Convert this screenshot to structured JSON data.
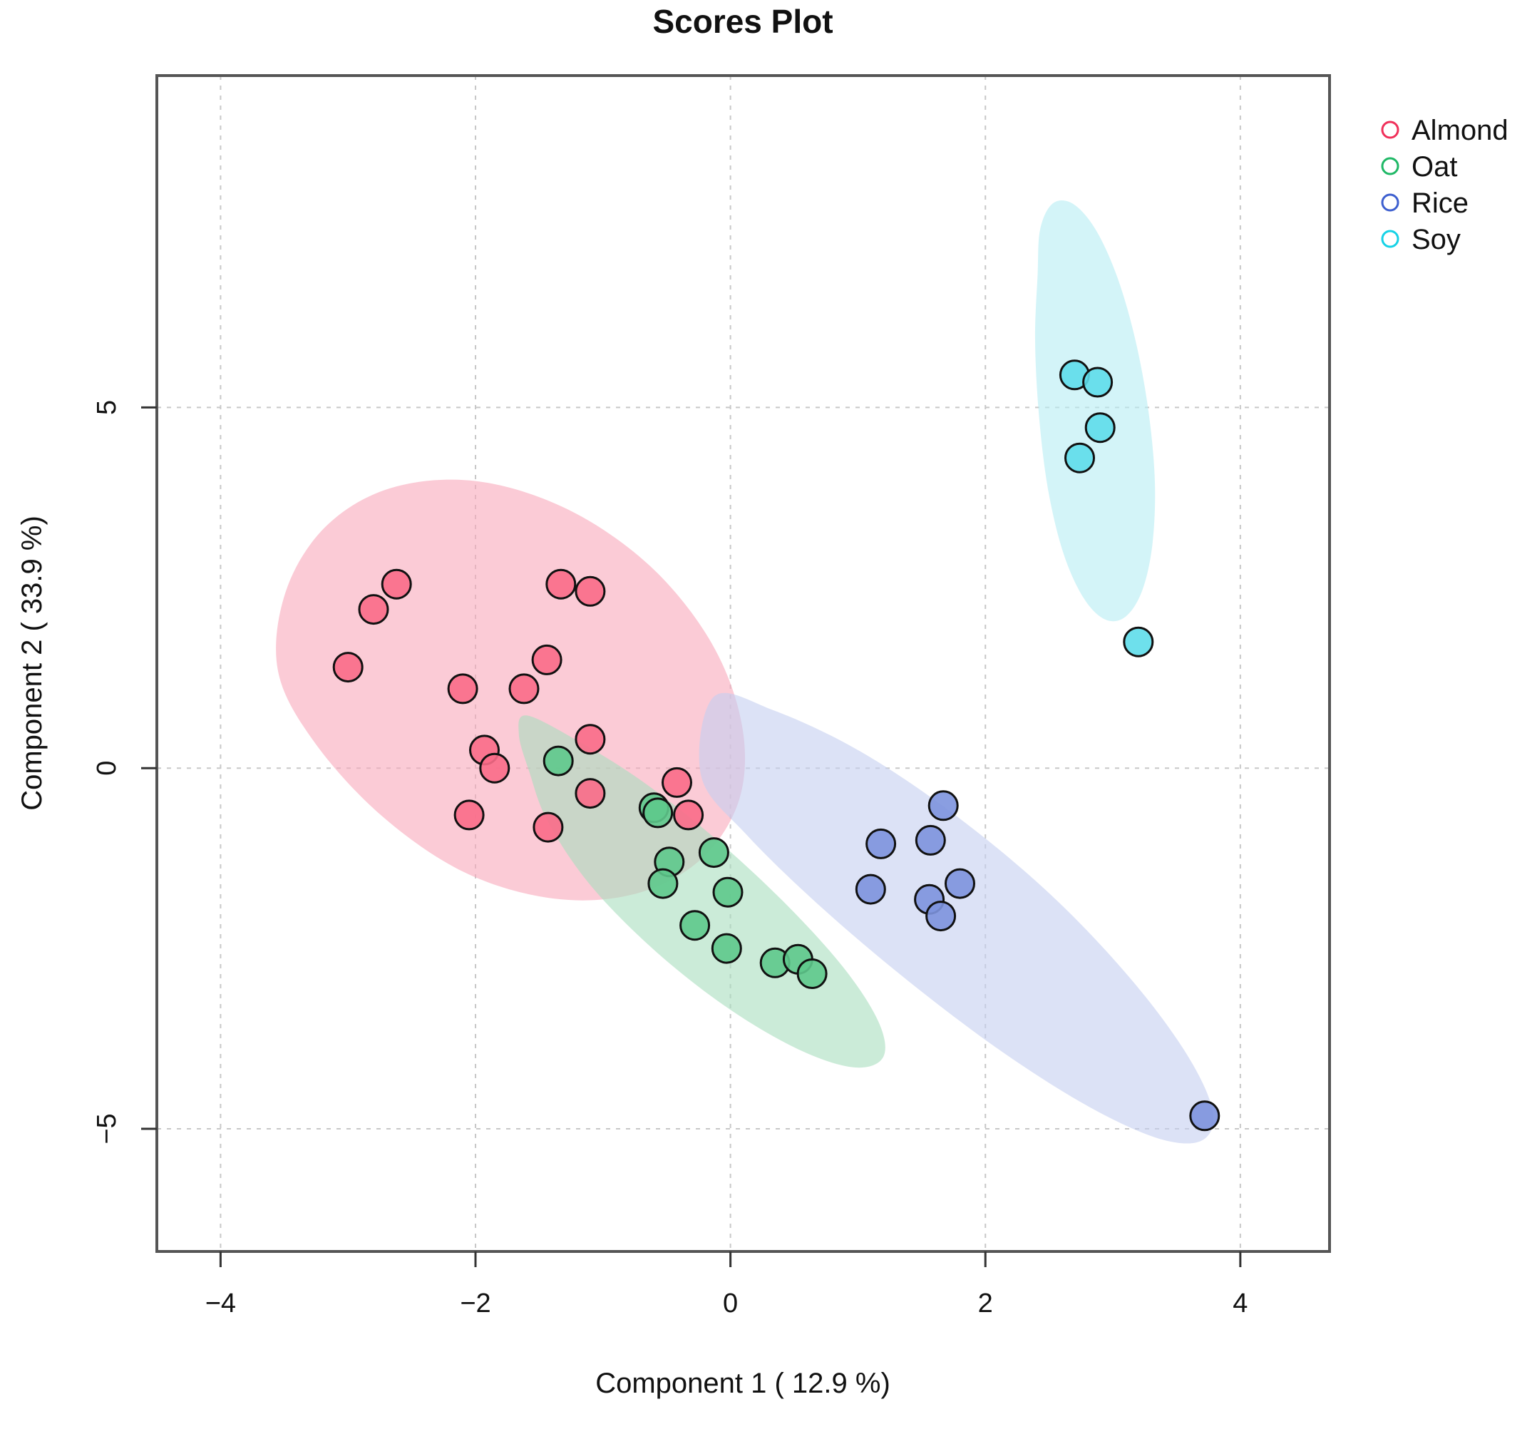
{
  "chart_data": {
    "type": "scatter",
    "title": "Scores Plot",
    "xlabel": "Component 1 ( 12.9 %)",
    "ylabel": "Component 2 ( 33.9 %)",
    "xlim": [
      -4.5,
      4.7
    ],
    "ylim": [
      -6.7,
      9.6
    ],
    "xticks": [
      -4,
      -2,
      0,
      2,
      4
    ],
    "xtick_labels": [
      "−4",
      "−2",
      "0",
      "2",
      "4"
    ],
    "yticks": [
      -5,
      0,
      5
    ],
    "ytick_labels": [
      "−5",
      "0",
      "5"
    ],
    "grid": true,
    "legend_position": "top-right (outside)",
    "series": [
      {
        "name": "Almond",
        "color": "#F0305A",
        "fill": "#F96B88",
        "ellipse_fill": "#F9A8BA",
        "points": [
          [
            -2.62,
            2.55
          ],
          [
            -2.8,
            2.2
          ],
          [
            -3.0,
            1.4
          ],
          [
            -1.33,
            2.55
          ],
          [
            -1.1,
            2.45
          ],
          [
            -1.44,
            1.5
          ],
          [
            -2.1,
            1.1
          ],
          [
            -1.62,
            1.1
          ],
          [
            -1.1,
            0.4
          ],
          [
            -1.93,
            0.25
          ],
          [
            -1.85,
            0.0
          ],
          [
            -2.05,
            -0.65
          ],
          [
            -1.1,
            -0.35
          ],
          [
            -1.43,
            -0.82
          ],
          [
            -0.42,
            -0.2
          ],
          [
            -0.33,
            -0.65
          ]
        ],
        "ellipse": [
          [
            -3.55,
            1.35
          ],
          [
            -3.49,
            2.44
          ],
          [
            -3.18,
            3.34
          ],
          [
            -2.67,
            3.88
          ],
          [
            -2.0,
            3.98
          ],
          [
            -1.28,
            3.59
          ],
          [
            -0.63,
            2.8
          ],
          [
            -0.15,
            1.74
          ],
          [
            0.09,
            0.6
          ],
          [
            0.07,
            -0.43
          ],
          [
            -0.23,
            -1.26
          ],
          [
            -0.74,
            -1.74
          ],
          [
            -1.38,
            -1.81
          ],
          [
            -2.08,
            -1.45
          ],
          [
            -2.73,
            -0.67
          ],
          [
            -3.26,
            0.35
          ]
        ]
      },
      {
        "name": "Oat",
        "color": "#1FB866",
        "fill": "#5EC98C",
        "ellipse_fill": "#A9DEBE",
        "points": [
          [
            -1.35,
            0.1
          ],
          [
            -0.6,
            -0.55
          ],
          [
            -0.57,
            -0.62
          ],
          [
            -0.13,
            -1.17
          ],
          [
            -0.48,
            -1.3
          ],
          [
            -0.53,
            -1.6
          ],
          [
            -0.02,
            -1.72
          ],
          [
            -0.28,
            -2.18
          ],
          [
            -0.03,
            -2.5
          ],
          [
            0.35,
            -2.7
          ],
          [
            0.53,
            -2.65
          ],
          [
            0.64,
            -2.85
          ]
        ],
        "ellipse": [
          [
            -1.6,
            0.73
          ],
          [
            -1.21,
            0.39
          ],
          [
            -0.71,
            -0.16
          ],
          [
            -0.15,
            -0.93
          ],
          [
            0.41,
            -1.84
          ],
          [
            0.88,
            -2.75
          ],
          [
            1.16,
            -3.51
          ],
          [
            1.2,
            -4.0
          ],
          [
            0.98,
            -4.15
          ],
          [
            0.56,
            -3.92
          ],
          [
            0.0,
            -3.35
          ],
          [
            -0.58,
            -2.55
          ],
          [
            -1.09,
            -1.64
          ],
          [
            -1.43,
            -0.75
          ],
          [
            -1.58,
            -0.04
          ],
          [
            -1.66,
            0.47
          ]
        ]
      },
      {
        "name": "Rice",
        "color": "#3D5FCF",
        "fill": "#7D93DE",
        "ellipse_fill": "#C5CEF0",
        "points": [
          [
            1.67,
            -0.52
          ],
          [
            1.18,
            -1.05
          ],
          [
            1.57,
            -1.0
          ],
          [
            1.8,
            -1.6
          ],
          [
            1.1,
            -1.68
          ],
          [
            1.56,
            -1.82
          ],
          [
            1.65,
            -2.05
          ],
          [
            3.72,
            -4.82
          ]
        ],
        "ellipse": [
          [
            -0.13,
            0.99
          ],
          [
            0.34,
            0.8
          ],
          [
            1.02,
            0.23
          ],
          [
            1.77,
            -0.66
          ],
          [
            2.51,
            -1.75
          ],
          [
            3.13,
            -2.9
          ],
          [
            3.57,
            -3.94
          ],
          [
            3.78,
            -4.73
          ],
          [
            3.71,
            -5.15
          ],
          [
            3.39,
            -5.15
          ],
          [
            2.85,
            -4.73
          ],
          [
            2.17,
            -3.98
          ],
          [
            1.43,
            -3.0
          ],
          [
            0.72,
            -1.94
          ],
          [
            0.13,
            -0.93
          ],
          [
            -0.23,
            -0.11
          ]
        ]
      },
      {
        "name": "Soy",
        "color": "#16D2E6",
        "fill": "#5EDDEA",
        "ellipse_fill": "#B6ECF4",
        "points": [
          [
            2.7,
            5.45
          ],
          [
            2.88,
            5.35
          ],
          [
            2.9,
            4.72
          ],
          [
            2.74,
            4.3
          ],
          [
            3.2,
            1.75
          ]
        ],
        "ellipse": [
          [
            2.43,
            7.47
          ],
          [
            2.53,
            7.83
          ],
          [
            2.69,
            7.82
          ],
          [
            2.87,
            7.45
          ],
          [
            3.04,
            6.78
          ],
          [
            3.18,
            5.91
          ],
          [
            3.28,
            4.94
          ],
          [
            3.33,
            3.96
          ],
          [
            3.31,
            3.1
          ],
          [
            3.23,
            2.46
          ],
          [
            3.1,
            2.1
          ],
          [
            2.94,
            2.06
          ],
          [
            2.77,
            2.36
          ],
          [
            2.61,
            2.99
          ],
          [
            2.49,
            3.88
          ],
          [
            2.42,
            4.9
          ],
          [
            2.39,
            5.93
          ],
          [
            2.41,
            6.84
          ]
        ]
      }
    ]
  }
}
